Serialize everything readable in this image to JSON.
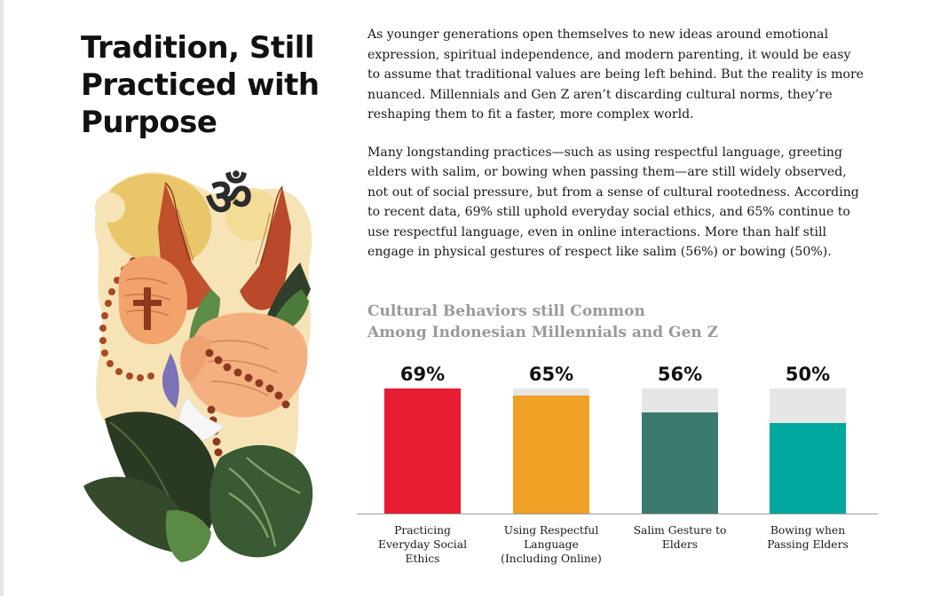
{
  "headline": {
    "line1": "Tradition, Still",
    "line2": "Practiced with",
    "line3": "Purpose"
  },
  "illustration": {
    "icons": [
      "om-symbol-icon",
      "praying-hands-icon",
      "rosary-icon",
      "cross-icon",
      "open-palms-icon",
      "tropical-leaf-icon",
      "monstera-leaf-icon"
    ],
    "om_glyph": "ॐ"
  },
  "body": {
    "paragraph1": "As younger generations open themselves to new ideas around emotional expression, spiritual independence, and modern parenting, it would be easy to assume that traditional values are being left behind. But the reality is more nuanced. Millennials and Gen Z aren’t discarding cultural norms, they’re reshaping them to fit a faster, more complex world.",
    "paragraph2": "Many longstanding practices—such as using respectful language, greeting elders with salim, or bowing when passing them—are still widely observed, not out of social pressure, but from a sense of cultural rootedness. According to recent data, 69% still uphold everyday social ethics, and 65% continue to use respectful language, even in online interactions. More than half still engage in physical gestures of respect like salim (56%) or bowing (50%)."
  },
  "chart_data": {
    "type": "bar",
    "title_line1": "Cultural Behaviors still Common",
    "title_line2": "Among Indonesian Millennials and Gen Z",
    "xlabel": "",
    "ylabel": "",
    "ylim": [
      0,
      100
    ],
    "grid": false,
    "categories": [
      "Practicing Everyday Social Ethics",
      "Using Respectful Language (Including Online)",
      "Salim Gesture to Elders",
      "Bowing when Passing Elders"
    ],
    "values": [
      69,
      65,
      56,
      50
    ],
    "value_labels": [
      "69%",
      "65%",
      "56%",
      "50%"
    ],
    "label_lines": [
      [
        "Practicing",
        "Everyday Social",
        "Ethics"
      ],
      [
        "Using Respectful",
        "Language",
        "(Including Online)"
      ],
      [
        "Salim Gesture to",
        "Elders"
      ],
      [
        "Bowing when",
        "Passing Elders"
      ]
    ],
    "colors": [
      "#e81c33",
      "#f0a024",
      "#3b7b6e",
      "#00a79d"
    ],
    "track_color": "#e6e6e6"
  }
}
